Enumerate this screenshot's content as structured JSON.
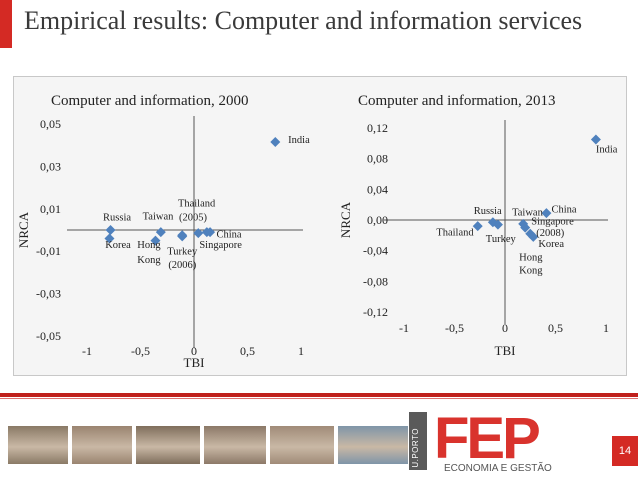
{
  "slide": {
    "title": "Empirical results: Computer and information services",
    "page_number": "14",
    "logo_text": "FEP",
    "logo_subtitle": "ECONOMIA E GESTÃO",
    "uporto_text": "U.PORTO",
    "accent_color": "#d42a24",
    "photos": [
      {
        "icon": "people-photo",
        "tone": "#8a7a66"
      },
      {
        "icon": "people-photo",
        "tone": "#9a8470"
      },
      {
        "icon": "people-photo",
        "tone": "#7f6e5c"
      },
      {
        "icon": "people-photo",
        "tone": "#8c7968"
      },
      {
        "icon": "people-photo",
        "tone": "#a08b78"
      },
      {
        "icon": "building-photo",
        "tone": "#7f95a8"
      }
    ]
  },
  "chart_data": [
    {
      "type": "scatter",
      "title": "Computer and information, 2000",
      "xlabel": "TBI",
      "ylabel": "NRCA",
      "xlim": [
        -1,
        1
      ],
      "ylim": [
        -0.05,
        0.05
      ],
      "xticks": [
        "-1",
        "-0,5",
        "0",
        "0,5",
        "1"
      ],
      "yticks": [
        "0,05",
        "0,03",
        "0,01",
        "-0,01",
        "-0,03",
        "-0,05"
      ],
      "marker_color": "#4f81bd",
      "points": [
        {
          "label": "India",
          "x": 0.76,
          "y": 0.0415
        },
        {
          "label": "Russia",
          "x": -0.78,
          "y": 0.0
        },
        {
          "label": "Korea",
          "x": -0.79,
          "y": -0.004
        },
        {
          "label": "Taiwan",
          "x": -0.31,
          "y": -0.001
        },
        {
          "label": "Hong Kong",
          "x": -0.36,
          "y": -0.005
        },
        {
          "label": "Turkey (2006)",
          "x": -0.11,
          "y": -0.003
        },
        {
          "label": "",
          "x": -0.11,
          "y": -0.0025
        },
        {
          "label": "Thailand (2005)",
          "x": 0.04,
          "y": -0.0015
        },
        {
          "label": "Singapore",
          "x": 0.12,
          "y": -0.001
        },
        {
          "label": "China",
          "x": 0.15,
          "y": -0.001
        }
      ],
      "labels": [
        {
          "text": "India",
          "x": 0.88,
          "y": 0.041
        },
        {
          "text": "Russia",
          "x": -0.85,
          "y": 0.0045
        },
        {
          "text": "Korea",
          "x": -0.83,
          "y": -0.0085
        },
        {
          "text": "Taiwan",
          "x": -0.48,
          "y": 0.005
        },
        {
          "text": "Hong",
          "x": -0.53,
          "y": -0.0085
        },
        {
          "text": "Kong",
          "x": -0.53,
          "y": -0.0155
        },
        {
          "text": "Turkey",
          "x": -0.25,
          "y": -0.0115
        },
        {
          "text": "(2006)",
          "x": -0.24,
          "y": -0.018
        },
        {
          "text": "Thailand",
          "x": -0.15,
          "y": 0.011
        },
        {
          "text": "(2005)",
          "x": -0.14,
          "y": 0.0045
        },
        {
          "text": "China",
          "x": 0.21,
          "y": -0.0035
        },
        {
          "text": "Singapore",
          "x": 0.05,
          "y": -0.0085
        }
      ]
    },
    {
      "type": "scatter",
      "title": "Computer and information, 2013",
      "xlabel": "TBI",
      "ylabel": "NRCA",
      "xlim": [
        -1,
        1
      ],
      "ylim": [
        -0.12,
        0.12
      ],
      "xticks": [
        "-1",
        "-0,5",
        "0",
        "0,5",
        "1"
      ],
      "yticks": [
        "0,12",
        "0,08",
        "0,04",
        "0,00",
        "-0,04",
        "-0,08",
        "-0,12"
      ],
      "marker_color": "#4f81bd",
      "points": [
        {
          "label": "India",
          "x": 0.9,
          "y": 0.105
        },
        {
          "label": "Thailand",
          "x": -0.27,
          "y": -0.008
        },
        {
          "label": "Russia",
          "x": -0.12,
          "y": -0.003
        },
        {
          "label": "Turkey",
          "x": -0.07,
          "y": -0.006
        },
        {
          "label": "Taiwan",
          "x": 0.18,
          "y": -0.005
        },
        {
          "label": "Singapore (2008)",
          "x": 0.2,
          "y": -0.01
        },
        {
          "label": "Hong Kong",
          "x": 0.25,
          "y": -0.018
        },
        {
          "label": "Korea",
          "x": 0.28,
          "y": -0.022
        },
        {
          "label": "China",
          "x": 0.41,
          "y": 0.009
        }
      ],
      "labels": [
        {
          "text": "India",
          "x": 0.9,
          "y": 0.088
        },
        {
          "text": "Russia",
          "x": -0.31,
          "y": 0.008
        },
        {
          "text": "Thailand",
          "x": -0.68,
          "y": -0.02
        },
        {
          "text": "Turkey",
          "x": -0.19,
          "y": -0.029
        },
        {
          "text": "Taiwan",
          "x": 0.07,
          "y": 0.006
        },
        {
          "text": "China",
          "x": 0.46,
          "y": 0.01
        },
        {
          "text": "Singapore",
          "x": 0.26,
          "y": -0.006
        },
        {
          "text": "(2008)",
          "x": 0.31,
          "y": -0.021
        },
        {
          "text": "Korea",
          "x": 0.33,
          "y": -0.035
        },
        {
          "text": "Hong",
          "x": 0.14,
          "y": -0.053
        },
        {
          "text": "Kong",
          "x": 0.14,
          "y": -0.07
        }
      ]
    }
  ]
}
